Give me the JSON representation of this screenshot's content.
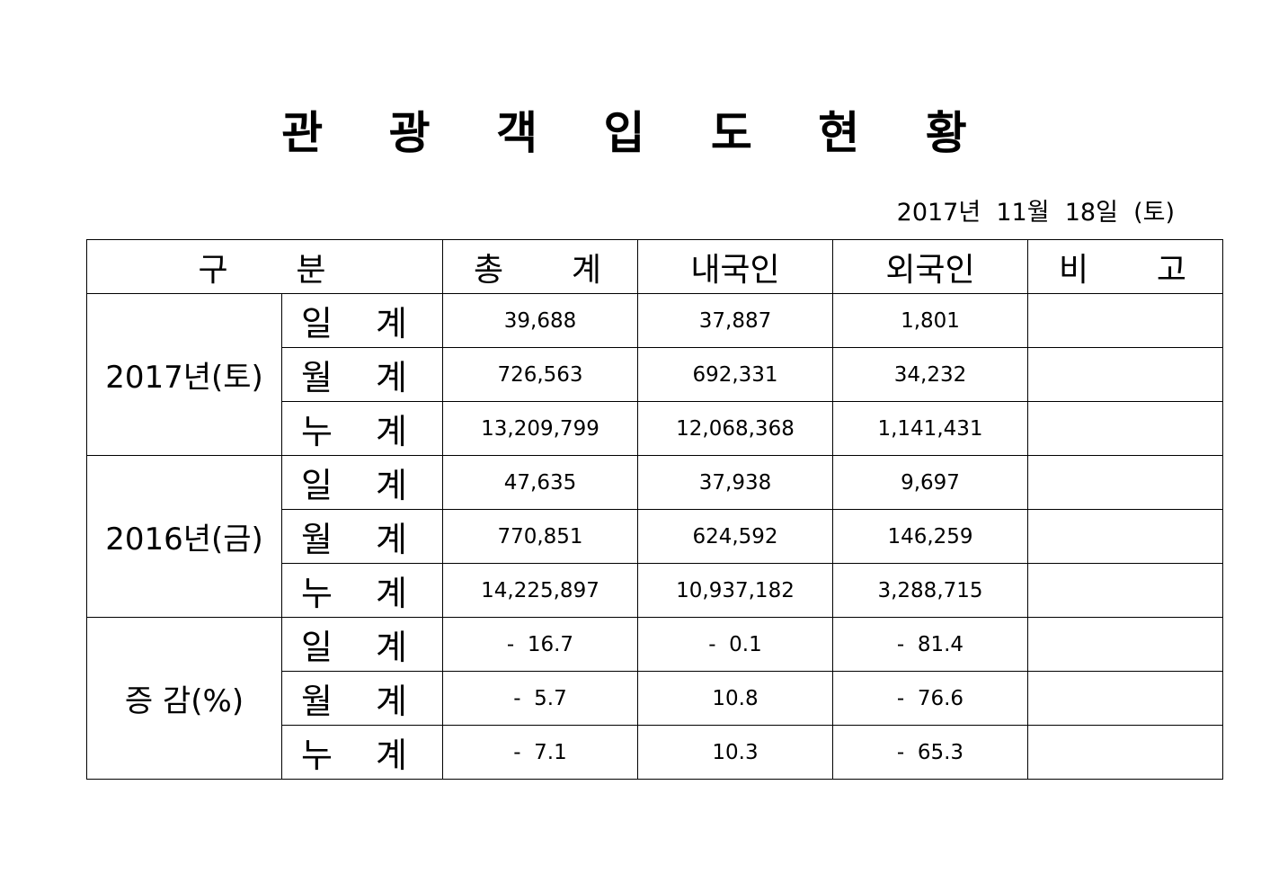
{
  "title": "관 광 객 입 도 현 황",
  "date": "2017년  11월  18일  (토)",
  "headers": {
    "category": "구    분",
    "total": "총    계",
    "domestic": "내국인",
    "foreign": "외국인",
    "remarks": "비    고"
  },
  "groups": [
    {
      "label": "2017년(토)",
      "rows": [
        {
          "label": "일 계",
          "total": "39,688",
          "domestic": "37,887",
          "foreign": "1,801",
          "remarks": ""
        },
        {
          "label": "월 계",
          "total": "726,563",
          "domestic": "692,331",
          "foreign": "34,232",
          "remarks": ""
        },
        {
          "label": "누 계",
          "total": "13,209,799",
          "domestic": "12,068,368",
          "foreign": "1,141,431",
          "remarks": ""
        }
      ]
    },
    {
      "label": "2016년(금)",
      "rows": [
        {
          "label": "일 계",
          "total": "47,635",
          "domestic": "37,938",
          "foreign": "9,697",
          "remarks": ""
        },
        {
          "label": "월 계",
          "total": "770,851",
          "domestic": "624,592",
          "foreign": "146,259",
          "remarks": ""
        },
        {
          "label": "누 계",
          "total": "14,225,897",
          "domestic": "10,937,182",
          "foreign": "3,288,715",
          "remarks": ""
        }
      ]
    },
    {
      "label": "증 감(%)",
      "rows": [
        {
          "label": "일 계",
          "total": "-  16.7",
          "domestic": "-  0.1",
          "foreign": "-  81.4",
          "remarks": ""
        },
        {
          "label": "월 계",
          "total": "-  5.7",
          "domestic": "10.8",
          "foreign": "-  76.6",
          "remarks": ""
        },
        {
          "label": "누 계",
          "total": "-  7.1",
          "domestic": "10.3",
          "foreign": "-  65.3",
          "remarks": ""
        }
      ]
    }
  ]
}
